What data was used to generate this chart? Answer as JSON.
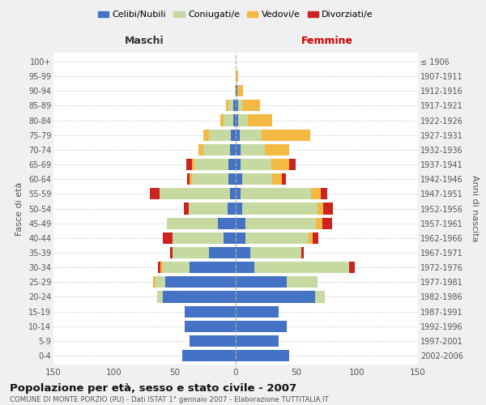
{
  "age_groups": [
    "0-4",
    "5-9",
    "10-14",
    "15-19",
    "20-24",
    "25-29",
    "30-34",
    "35-39",
    "40-44",
    "45-49",
    "50-54",
    "55-59",
    "60-64",
    "65-69",
    "70-74",
    "75-79",
    "80-84",
    "85-89",
    "90-94",
    "95-99",
    "100+"
  ],
  "birth_years": [
    "2002-2006",
    "1997-2001",
    "1992-1996",
    "1987-1991",
    "1982-1986",
    "1977-1981",
    "1972-1976",
    "1967-1971",
    "1962-1966",
    "1957-1961",
    "1952-1956",
    "1947-1951",
    "1942-1946",
    "1937-1941",
    "1932-1936",
    "1927-1931",
    "1922-1926",
    "1917-1921",
    "1912-1916",
    "1907-1911",
    "≤ 1906"
  ],
  "maschi": {
    "celibi": [
      44,
      38,
      42,
      42,
      60,
      58,
      38,
      22,
      10,
      15,
      7,
      5,
      6,
      6,
      5,
      4,
      2,
      2,
      0,
      0,
      0
    ],
    "coniugati": [
      0,
      0,
      0,
      0,
      5,
      8,
      22,
      30,
      42,
      42,
      32,
      58,
      30,
      28,
      22,
      18,
      8,
      4,
      1,
      0,
      0
    ],
    "vedovi": [
      0,
      0,
      0,
      0,
      0,
      2,
      2,
      0,
      0,
      0,
      0,
      0,
      2,
      2,
      4,
      5,
      3,
      2,
      0,
      0,
      0
    ],
    "divorziati": [
      0,
      0,
      0,
      0,
      0,
      0,
      2,
      2,
      8,
      0,
      4,
      8,
      2,
      5,
      0,
      0,
      0,
      0,
      0,
      0,
      0
    ]
  },
  "femmine": {
    "nubili": [
      44,
      35,
      42,
      35,
      65,
      42,
      15,
      12,
      8,
      8,
      5,
      4,
      5,
      4,
      4,
      3,
      2,
      2,
      1,
      0,
      0
    ],
    "coniugate": [
      0,
      0,
      0,
      0,
      8,
      25,
      78,
      42,
      52,
      58,
      62,
      58,
      25,
      25,
      20,
      18,
      8,
      3,
      0,
      0,
      0
    ],
    "vedove": [
      0,
      0,
      0,
      0,
      0,
      0,
      0,
      0,
      3,
      5,
      5,
      8,
      8,
      15,
      20,
      40,
      20,
      15,
      5,
      2,
      0
    ],
    "divorziate": [
      0,
      0,
      0,
      0,
      0,
      0,
      5,
      2,
      5,
      8,
      8,
      5,
      3,
      5,
      0,
      0,
      0,
      0,
      0,
      0,
      0
    ]
  },
  "colors": {
    "celibi": "#4472C4",
    "coniugati": "#c5d9a0",
    "vedovi": "#F4B942",
    "divorziati": "#CC2222"
  },
  "xlim": 150,
  "title": "Popolazione per età, sesso e stato civile - 2007",
  "subtitle": "COMUNE DI MONTE PORZIO (PU) - Dati ISTAT 1° gennaio 2007 - Elaborazione TUTTITALIA.IT",
  "xlabel_left": "Maschi",
  "xlabel_right": "Femmine",
  "ylabel_left": "Fasce di età",
  "ylabel_right": "Anni di nascita",
  "bg_color": "#f0f0f0",
  "plot_bg": "#ffffff",
  "legend_labels": [
    "Celibi/Nubili",
    "Coniugati/e",
    "Vedovi/e",
    "Divorziati/e"
  ]
}
